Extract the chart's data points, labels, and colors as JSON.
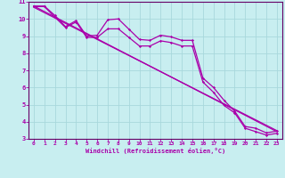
{
  "xlabel": "Windchill (Refroidissement éolien,°C)",
  "bg_color": "#c8eef0",
  "grid_color": "#a8d8dc",
  "line_color": "#aa00aa",
  "spine_color": "#660066",
  "xlim": [
    -0.5,
    23.5
  ],
  "ylim": [
    3,
    11
  ],
  "yticks": [
    3,
    4,
    5,
    6,
    7,
    8,
    9,
    10,
    11
  ],
  "xticks": [
    0,
    1,
    2,
    3,
    4,
    5,
    6,
    7,
    8,
    9,
    10,
    11,
    12,
    13,
    14,
    15,
    16,
    17,
    18,
    19,
    20,
    21,
    22,
    23
  ],
  "line1_x": [
    0,
    1,
    2,
    3,
    4,
    5,
    6,
    7,
    8,
    9,
    10,
    11,
    12,
    13,
    14,
    15,
    16,
    17,
    18,
    19,
    20,
    21,
    22,
    23
  ],
  "line1_y": [
    10.75,
    10.75,
    10.2,
    9.55,
    9.9,
    9.0,
    9.05,
    9.95,
    10.0,
    9.4,
    8.8,
    8.75,
    9.05,
    8.95,
    8.75,
    8.75,
    6.55,
    6.0,
    5.25,
    4.62,
    3.72,
    3.62,
    3.35,
    3.45
  ],
  "line2_x": [
    0,
    1,
    2,
    3,
    4,
    5,
    6,
    7,
    8,
    9,
    10,
    11,
    12,
    13,
    14,
    15,
    16,
    17,
    18,
    19,
    20,
    21,
    22,
    23
  ],
  "line2_y": [
    10.72,
    10.72,
    10.1,
    9.5,
    9.82,
    8.92,
    8.92,
    9.42,
    9.42,
    8.92,
    8.42,
    8.42,
    8.72,
    8.62,
    8.42,
    8.42,
    6.32,
    5.72,
    4.95,
    4.52,
    3.62,
    3.42,
    3.22,
    3.32
  ],
  "line3_x": [
    0,
    23
  ],
  "line3_y": [
    10.75,
    3.42
  ],
  "line4_x": [
    0,
    23
  ],
  "line4_y": [
    10.68,
    3.48
  ]
}
